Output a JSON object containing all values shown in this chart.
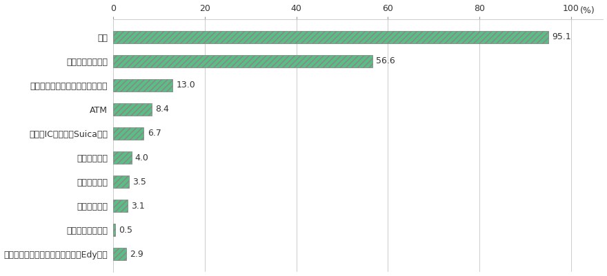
{
  "categories": [
    "現金",
    "クレジットカード",
    "デビットカード（銀至カード等）",
    "ATM",
    "交通系ICカード（Suica等）",
    "空港の両替所",
    "銀行・郵便局",
    "その他両替商",
    "宿泊施設での両替",
    "その他（トラベラーズチェック、Edy等）"
  ],
  "values": [
    95.1,
    56.6,
    13.0,
    8.4,
    6.7,
    4.0,
    3.5,
    3.1,
    0.5,
    2.9
  ],
  "bar_color": "#5abf84",
  "edge_color": "#888888",
  "xlim": [
    0,
    107
  ],
  "xticks": [
    0,
    20,
    40,
    60,
    80,
    100
  ],
  "xtick_labels": [
    "0",
    "20",
    "40",
    "60",
    "80",
    "100"
  ],
  "grid_color": "#cccccc",
  "label_fontsize": 9,
  "value_fontsize": 9,
  "bar_height": 0.5,
  "background_color": "#ffffff",
  "text_color": "#333333"
}
